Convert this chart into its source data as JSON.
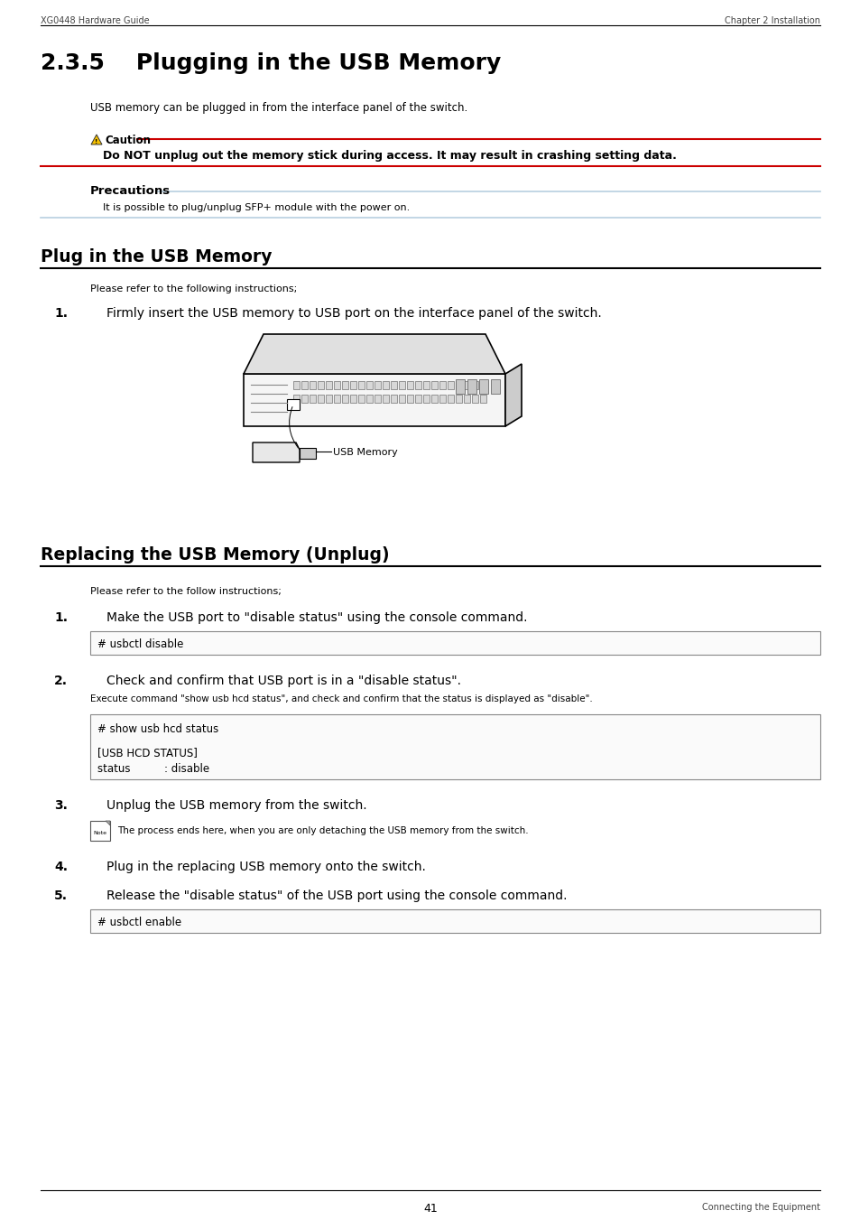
{
  "header_left": "XG0448 Hardware Guide",
  "header_right": "Chapter 2 Installation",
  "section_title": "2.3.5    Plugging in the USB Memory",
  "intro_text": "USB memory can be plugged in from the interface panel of the switch.",
  "caution_label": "Caution",
  "caution_text": "Do NOT unplug out the memory stick during access. It may result in crashing setting data.",
  "precautions_label": "Precautions",
  "precautions_text": "It is possible to plug/unplug SFP+ module with the power on.",
  "section2_title": "Plug in the USB Memory",
  "plug_intro": "Please refer to the following instructions;",
  "plug_step1_num": "1.",
  "plug_step1_text": "Firmly insert the USB memory to USB port on the interface panel of the switch.",
  "usb_memory_label": "USB Memory",
  "section3_title": "Replacing the USB Memory (Unplug)",
  "replace_intro": "Please refer to the follow instructions;",
  "replace_step1_num": "1.",
  "replace_step1_text": "Make the USB port to \"disable status\" using the console command.",
  "cmd1": "# usbctl disable",
  "replace_step2_num": "2.",
  "replace_step2_text": "Check and confirm that USB port is in a \"disable status\".",
  "replace_step2_sub": "Execute command \"show usb hcd status\", and check and confirm that the status is displayed as \"disable\".",
  "cmd2_line1": "# show usb hcd status",
  "cmd2_line3": "[USB HCD STATUS]",
  "cmd2_line4": "status          : disable",
  "replace_step3_num": "3.",
  "replace_step3_text": "Unplug the USB memory from the switch.",
  "note_text": "The process ends here, when you are only detaching the USB memory from the switch.",
  "replace_step4_num": "4.",
  "replace_step4_text": "Plug in the replacing USB memory onto the switch.",
  "replace_step5_num": "5.",
  "replace_step5_text": "Release the \"disable status\" of the USB port using the console command.",
  "cmd3": "# usbctl enable",
  "footer_page": "41",
  "footer_right": "Connecting the Equipment",
  "bg_color": "#ffffff"
}
